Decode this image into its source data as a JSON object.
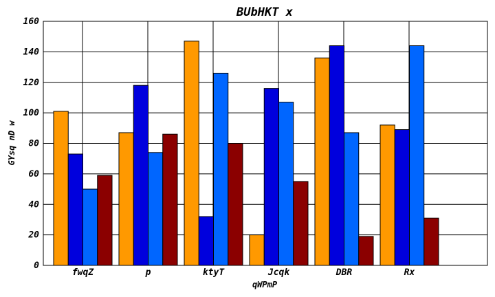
{
  "chart_data": {
    "type": "bar",
    "title": "BUbHKT x",
    "xlabel": "qWPmP",
    "ylabel": "GYsq nD w",
    "categories": [
      "fwqZ",
      "p",
      "ktyT",
      "Jcqk",
      "DBR",
      "Rx"
    ],
    "series": [
      {
        "color": "#FF9900",
        "values": [
          101,
          87,
          147,
          20,
          136,
          92
        ]
      },
      {
        "color": "#0000DD",
        "values": [
          73,
          118,
          32,
          116,
          144,
          89
        ]
      },
      {
        "color": "#0066FF",
        "values": [
          50,
          74,
          126,
          107,
          87,
          144
        ]
      },
      {
        "color": "#8B0000",
        "values": [
          59,
          86,
          80,
          55,
          19,
          31
        ]
      }
    ],
    "ylim": [
      0,
      160
    ],
    "yticks": [
      0,
      20,
      40,
      60,
      80,
      100,
      120,
      140,
      160
    ],
    "grid": true,
    "legend": "none"
  }
}
